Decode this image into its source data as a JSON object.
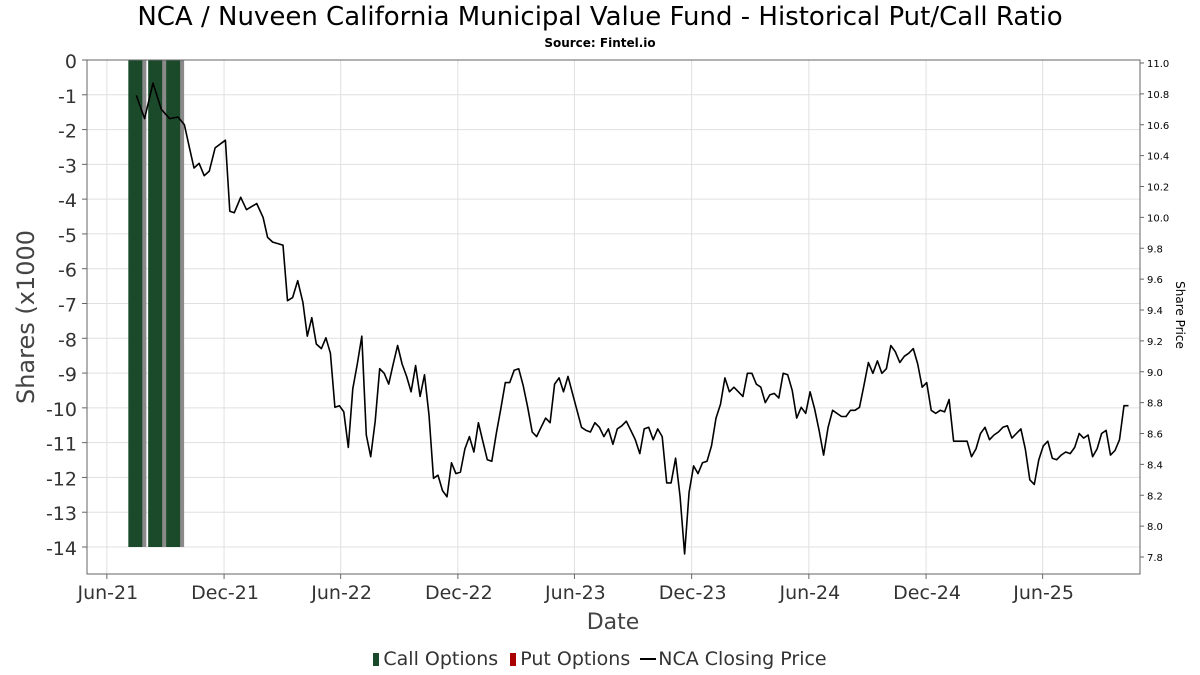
{
  "chart_data": {
    "type": "bar",
    "title": "NCA / Nuveen California Municipal Value Fund - Historical Put/Call Ratio",
    "subtitle": "Source: Fintel.io",
    "xlabel": "Date",
    "ylabel": "Shares (x1000",
    "y2label": "Share Price",
    "x_range": [
      "2021-05-01",
      "2025-10-31"
    ],
    "ylim": [
      -14.75,
      0
    ],
    "y2lim": [
      7.73,
      11.0
    ],
    "yticks": [
      0,
      -1,
      -2,
      -3,
      -4,
      -5,
      -6,
      -7,
      -8,
      -9,
      -10,
      -11,
      -12,
      -13,
      -14
    ],
    "y2ticks": [
      11.0,
      10.8,
      10.6,
      10.4,
      10.2,
      10.0,
      9.8,
      9.6,
      9.4,
      9.2,
      9.0,
      8.8,
      8.6,
      8.4,
      8.2,
      8.0,
      7.8
    ],
    "xticks": [
      {
        "label": "Jun-21",
        "date": "2021-06-01"
      },
      {
        "label": "Dec-21",
        "date": "2021-12-01"
      },
      {
        "label": "Jun-22",
        "date": "2022-06-01"
      },
      {
        "label": "Dec-22",
        "date": "2022-12-01"
      },
      {
        "label": "Jun-23",
        "date": "2023-06-01"
      },
      {
        "label": "Dec-23",
        "date": "2023-12-01"
      },
      {
        "label": "Jun-24",
        "date": "2024-06-01"
      },
      {
        "label": "Dec-24",
        "date": "2024-12-01"
      },
      {
        "label": "Jun-25",
        "date": "2025-06-01"
      }
    ],
    "grid": true,
    "legend_position": "bottom",
    "series": [
      {
        "name": "Call Options",
        "kind": "bar",
        "color": "#1a4a2a",
        "points": [
          {
            "date": "2021-07-17",
            "value": -14
          },
          {
            "date": "2021-08-17",
            "value": -14
          },
          {
            "date": "2021-09-14",
            "value": -14
          }
        ]
      },
      {
        "name": "Put Options",
        "kind": "bar",
        "color": "#aa0000",
        "points": []
      },
      {
        "name": "NCA Closing Price",
        "kind": "line",
        "axis": "right",
        "color": "#000000",
        "points": [
          [
            "2021-07-17",
            10.79
          ],
          [
            "2021-07-30",
            10.64
          ],
          [
            "2021-08-12",
            10.87
          ],
          [
            "2021-08-25",
            10.7
          ],
          [
            "2021-09-07",
            10.64
          ],
          [
            "2021-09-20",
            10.65
          ],
          [
            "2021-09-30",
            10.6
          ],
          [
            "2021-10-08",
            10.45
          ],
          [
            "2021-10-15",
            10.32
          ],
          [
            "2021-10-23",
            10.35
          ],
          [
            "2021-10-31",
            10.27
          ],
          [
            "2021-11-08",
            10.3
          ],
          [
            "2021-11-17",
            10.45
          ],
          [
            "2021-12-03",
            10.5
          ],
          [
            "2021-12-10",
            10.04
          ],
          [
            "2021-12-17",
            10.03
          ],
          [
            "2021-12-27",
            10.13
          ],
          [
            "2022-01-05",
            10.05
          ],
          [
            "2022-01-13",
            10.07
          ],
          [
            "2022-01-21",
            10.09
          ],
          [
            "2022-01-31",
            10.0
          ],
          [
            "2022-02-07",
            9.87
          ],
          [
            "2022-02-15",
            9.84
          ],
          [
            "2022-02-23",
            9.83
          ],
          [
            "2022-03-03",
            9.82
          ],
          [
            "2022-03-10",
            9.46
          ],
          [
            "2022-03-18",
            9.48
          ],
          [
            "2022-03-26",
            9.59
          ],
          [
            "2022-04-03",
            9.45
          ],
          [
            "2022-04-10",
            9.23
          ],
          [
            "2022-04-17",
            9.35
          ],
          [
            "2022-04-24",
            9.18
          ],
          [
            "2022-05-02",
            9.15
          ],
          [
            "2022-05-09",
            9.22
          ],
          [
            "2022-05-16",
            9.12
          ],
          [
            "2022-05-23",
            8.77
          ],
          [
            "2022-05-30",
            8.78
          ],
          [
            "2022-06-06",
            8.74
          ],
          [
            "2022-06-13",
            8.51
          ],
          [
            "2022-06-20",
            8.89
          ],
          [
            "2022-06-27",
            9.05
          ],
          [
            "2022-07-04",
            9.23
          ],
          [
            "2022-07-11",
            8.59
          ],
          [
            "2022-07-18",
            8.45
          ],
          [
            "2022-07-25",
            8.68
          ],
          [
            "2022-08-01",
            9.02
          ],
          [
            "2022-08-08",
            8.99
          ],
          [
            "2022-08-15",
            8.92
          ],
          [
            "2022-08-22",
            9.05
          ],
          [
            "2022-08-29",
            9.17
          ],
          [
            "2022-09-05",
            9.05
          ],
          [
            "2022-09-12",
            8.97
          ],
          [
            "2022-09-19",
            8.87
          ],
          [
            "2022-09-26",
            9.04
          ],
          [
            "2022-10-03",
            8.84
          ],
          [
            "2022-10-10",
            8.98
          ],
          [
            "2022-10-17",
            8.72
          ],
          [
            "2022-10-24",
            8.31
          ],
          [
            "2022-10-31",
            8.33
          ],
          [
            "2022-11-07",
            8.23
          ],
          [
            "2022-11-14",
            8.19
          ],
          [
            "2022-11-21",
            8.41
          ],
          [
            "2022-11-28",
            8.34
          ],
          [
            "2022-12-05",
            8.35
          ],
          [
            "2022-12-12",
            8.5
          ],
          [
            "2022-12-19",
            8.58
          ],
          [
            "2022-12-26",
            8.48
          ],
          [
            "2023-01-02",
            8.67
          ],
          [
            "2023-01-09",
            8.55
          ],
          [
            "2023-01-16",
            8.43
          ],
          [
            "2023-01-23",
            8.42
          ],
          [
            "2023-01-30",
            8.6
          ],
          [
            "2023-02-06",
            8.76
          ],
          [
            "2023-02-13",
            8.93
          ],
          [
            "2023-02-20",
            8.93
          ],
          [
            "2023-02-27",
            9.01
          ],
          [
            "2023-03-06",
            9.02
          ],
          [
            "2023-03-13",
            8.91
          ],
          [
            "2023-03-20",
            8.77
          ],
          [
            "2023-03-27",
            8.61
          ],
          [
            "2023-04-03",
            8.58
          ],
          [
            "2023-04-10",
            8.64
          ],
          [
            "2023-04-17",
            8.7
          ],
          [
            "2023-04-24",
            8.67
          ],
          [
            "2023-05-01",
            8.92
          ],
          [
            "2023-05-08",
            8.96
          ],
          [
            "2023-05-15",
            8.87
          ],
          [
            "2023-05-22",
            8.97
          ],
          [
            "2023-05-29",
            8.86
          ],
          [
            "2023-06-05",
            8.75
          ],
          [
            "2023-06-12",
            8.64
          ],
          [
            "2023-06-19",
            8.62
          ],
          [
            "2023-06-26",
            8.61
          ],
          [
            "2023-07-03",
            8.67
          ],
          [
            "2023-07-10",
            8.64
          ],
          [
            "2023-07-17",
            8.58
          ],
          [
            "2023-07-24",
            8.63
          ],
          [
            "2023-07-31",
            8.53
          ],
          [
            "2023-08-07",
            8.63
          ],
          [
            "2023-08-14",
            8.65
          ],
          [
            "2023-08-21",
            8.68
          ],
          [
            "2023-08-28",
            8.62
          ],
          [
            "2023-09-04",
            8.56
          ],
          [
            "2023-09-11",
            8.47
          ],
          [
            "2023-09-18",
            8.63
          ],
          [
            "2023-09-25",
            8.64
          ],
          [
            "2023-10-02",
            8.56
          ],
          [
            "2023-10-09",
            8.63
          ],
          [
            "2023-10-16",
            8.58
          ],
          [
            "2023-10-23",
            8.28
          ],
          [
            "2023-10-30",
            8.28
          ],
          [
            "2023-11-06",
            8.44
          ],
          [
            "2023-11-13",
            8.19
          ],
          [
            "2023-11-20",
            7.82
          ],
          [
            "2023-11-27",
            8.22
          ],
          [
            "2023-12-04",
            8.39
          ],
          [
            "2023-12-11",
            8.34
          ],
          [
            "2023-12-18",
            8.41
          ],
          [
            "2023-12-25",
            8.42
          ],
          [
            "2024-01-01",
            8.52
          ],
          [
            "2024-01-08",
            8.7
          ],
          [
            "2024-01-15",
            8.79
          ],
          [
            "2024-01-22",
            8.96
          ],
          [
            "2024-01-29",
            8.87
          ],
          [
            "2024-02-05",
            8.9
          ],
          [
            "2024-02-12",
            8.87
          ],
          [
            "2024-02-19",
            8.84
          ],
          [
            "2024-02-26",
            8.99
          ],
          [
            "2024-03-04",
            8.99
          ],
          [
            "2024-03-11",
            8.92
          ],
          [
            "2024-03-18",
            8.9
          ],
          [
            "2024-03-25",
            8.8
          ],
          [
            "2024-04-01",
            8.85
          ],
          [
            "2024-04-08",
            8.86
          ],
          [
            "2024-04-15",
            8.83
          ],
          [
            "2024-04-22",
            8.99
          ],
          [
            "2024-04-29",
            8.98
          ],
          [
            "2024-05-06",
            8.88
          ],
          [
            "2024-05-13",
            8.7
          ],
          [
            "2024-05-20",
            8.77
          ],
          [
            "2024-05-27",
            8.73
          ],
          [
            "2024-06-03",
            8.87
          ],
          [
            "2024-06-10",
            8.76
          ],
          [
            "2024-06-17",
            8.62
          ],
          [
            "2024-06-24",
            8.46
          ],
          [
            "2024-07-01",
            8.64
          ],
          [
            "2024-07-08",
            8.75
          ],
          [
            "2024-07-15",
            8.73
          ],
          [
            "2024-07-22",
            8.71
          ],
          [
            "2024-07-29",
            8.71
          ],
          [
            "2024-08-05",
            8.75
          ],
          [
            "2024-08-12",
            8.75
          ],
          [
            "2024-08-19",
            8.77
          ],
          [
            "2024-08-26",
            8.91
          ],
          [
            "2024-09-02",
            9.06
          ],
          [
            "2024-09-09",
            8.99
          ],
          [
            "2024-09-16",
            9.07
          ],
          [
            "2024-09-23",
            8.99
          ],
          [
            "2024-09-30",
            9.02
          ],
          [
            "2024-10-07",
            9.17
          ],
          [
            "2024-10-14",
            9.13
          ],
          [
            "2024-10-21",
            9.06
          ],
          [
            "2024-10-28",
            9.1
          ],
          [
            "2024-11-04",
            9.12
          ],
          [
            "2024-11-11",
            9.15
          ],
          [
            "2024-11-18",
            9.05
          ],
          [
            "2024-11-25",
            8.9
          ],
          [
            "2024-12-02",
            8.93
          ],
          [
            "2024-12-09",
            8.75
          ],
          [
            "2024-12-16",
            8.73
          ],
          [
            "2024-12-23",
            8.75
          ],
          [
            "2024-12-30",
            8.74
          ],
          [
            "2025-01-06",
            8.82
          ],
          [
            "2025-01-13",
            8.55
          ],
          [
            "2025-01-20",
            8.55
          ],
          [
            "2025-01-27",
            8.55
          ],
          [
            "2025-02-03",
            8.55
          ],
          [
            "2025-02-10",
            8.45
          ],
          [
            "2025-02-17",
            8.5
          ],
          [
            "2025-02-24",
            8.6
          ],
          [
            "2025-03-03",
            8.64
          ],
          [
            "2025-03-10",
            8.56
          ],
          [
            "2025-03-17",
            8.59
          ],
          [
            "2025-03-24",
            8.61
          ],
          [
            "2025-03-31",
            8.64
          ],
          [
            "2025-04-07",
            8.65
          ],
          [
            "2025-04-14",
            8.57
          ],
          [
            "2025-04-21",
            8.6
          ],
          [
            "2025-04-28",
            8.63
          ],
          [
            "2025-05-05",
            8.5
          ],
          [
            "2025-05-12",
            8.3
          ],
          [
            "2025-05-19",
            8.27
          ],
          [
            "2025-05-26",
            8.43
          ],
          [
            "2025-06-02",
            8.52
          ],
          [
            "2025-06-09",
            8.55
          ],
          [
            "2025-06-16",
            8.44
          ],
          [
            "2025-06-23",
            8.43
          ],
          [
            "2025-06-30",
            8.46
          ],
          [
            "2025-07-07",
            8.48
          ],
          [
            "2025-07-14",
            8.47
          ],
          [
            "2025-07-21",
            8.51
          ],
          [
            "2025-07-28",
            8.6
          ],
          [
            "2025-08-04",
            8.57
          ],
          [
            "2025-08-11",
            8.59
          ],
          [
            "2025-08-18",
            8.45
          ],
          [
            "2025-08-25",
            8.5
          ],
          [
            "2025-09-01",
            8.6
          ],
          [
            "2025-09-08",
            8.62
          ],
          [
            "2025-09-15",
            8.46
          ],
          [
            "2025-09-22",
            8.49
          ],
          [
            "2025-09-29",
            8.56
          ],
          [
            "2025-10-06",
            8.78
          ],
          [
            "2025-10-13",
            8.78
          ]
        ]
      }
    ]
  }
}
